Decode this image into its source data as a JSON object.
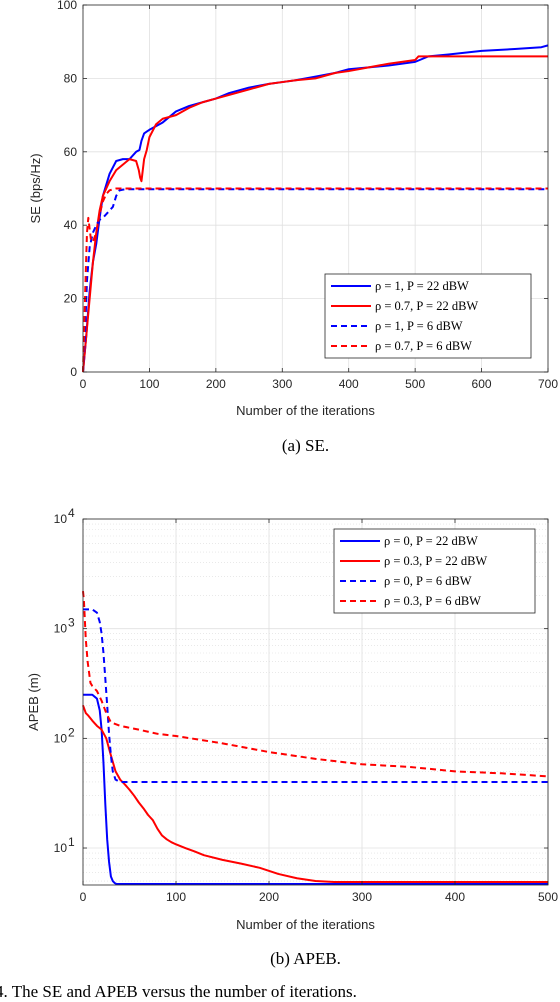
{
  "chart_data": [
    {
      "type": "line",
      "caption": "(a) SE.",
      "xlabel": "Number of the iterations",
      "ylabel": "SE (bps/Hz)",
      "xlim": [
        0,
        700
      ],
      "ylim": [
        0,
        100
      ],
      "yscale": "linear",
      "xticks": [
        0,
        100,
        200,
        300,
        400,
        500,
        600,
        700
      ],
      "yticks": [
        0,
        20,
        40,
        60,
        80,
        100
      ],
      "xtick_labels": [
        "0",
        "100",
        "200",
        "300",
        "400",
        "500",
        "600",
        "700"
      ],
      "ytick_labels": [
        "0",
        "20",
        "40",
        "60",
        "80",
        "100"
      ],
      "grid": true,
      "legend_position": "bottom-right",
      "series": [
        {
          "name": "ρ = 1, P = 22 dBW",
          "color": "#0000ff",
          "dash": "solid",
          "x": [
            0,
            5,
            10,
            15,
            20,
            25,
            30,
            40,
            50,
            60,
            70,
            80,
            85,
            88,
            92,
            96,
            100,
            110,
            120,
            140,
            160,
            180,
            200,
            220,
            250,
            280,
            300,
            320,
            350,
            380,
            400,
            430,
            460,
            500,
            520,
            550,
            600,
            650,
            690,
            700
          ],
          "y": [
            0,
            10,
            22,
            30,
            35,
            42,
            48,
            54,
            57.5,
            58,
            58,
            60,
            60.5,
            63,
            65,
            65.5,
            66,
            67,
            68,
            71,
            72.5,
            73.5,
            74.5,
            76,
            77.5,
            78.5,
            79,
            79.5,
            80.5,
            81.5,
            82.5,
            83,
            83.5,
            84.5,
            86,
            86.5,
            87.5,
            88,
            88.5,
            89
          ]
        },
        {
          "name": "ρ = 0.7, P = 22 dBW",
          "color": "#ff0000",
          "dash": "solid",
          "x": [
            0,
            5,
            10,
            15,
            20,
            25,
            30,
            40,
            50,
            60,
            70,
            80,
            84,
            86,
            88,
            90,
            92,
            96,
            100,
            110,
            120,
            140,
            160,
            180,
            200,
            220,
            250,
            280,
            300,
            320,
            350,
            380,
            400,
            430,
            460,
            500,
            505,
            520,
            550,
            600,
            650,
            700
          ],
          "y": [
            0,
            10,
            20,
            30,
            38,
            44,
            48,
            52,
            55,
            56.5,
            58,
            57.5,
            55,
            53,
            52,
            55,
            58,
            60.5,
            64,
            67.5,
            69,
            70,
            72,
            73.5,
            74.5,
            75.5,
            77,
            78.5,
            79,
            79.5,
            80,
            81.5,
            82,
            83,
            84,
            85,
            86,
            86,
            86,
            86,
            86,
            86
          ]
        },
        {
          "name": "ρ = 1, P = 6 dBW",
          "color": "#0000ff",
          "dash": "dashed",
          "x": [
            0,
            3,
            6,
            10,
            15,
            20,
            25,
            30,
            35,
            40,
            45,
            50,
            55,
            60,
            70,
            80,
            100,
            200,
            300,
            400,
            500,
            600,
            700
          ],
          "y": [
            0,
            10,
            25,
            34,
            38,
            40,
            41.5,
            42,
            43,
            44,
            45,
            48,
            49.5,
            49.7,
            49.8,
            49.8,
            49.8,
            49.8,
            49.8,
            49.8,
            49.8,
            49.8,
            49.8
          ]
        },
        {
          "name": "ρ = 0.7, P = 6 dBW",
          "color": "#ff0000",
          "dash": "dashed",
          "x": [
            0,
            3,
            6,
            8,
            10,
            12,
            15,
            20,
            25,
            30,
            35,
            40,
            50,
            60,
            70,
            80,
            100,
            200,
            300,
            400,
            500,
            600,
            700
          ],
          "y": [
            0,
            20,
            38,
            42,
            39,
            36,
            35.5,
            38,
            43,
            46.5,
            48.5,
            49.5,
            50,
            50,
            50,
            50,
            50,
            50,
            50,
            50,
            50,
            50,
            50
          ]
        }
      ]
    },
    {
      "type": "line",
      "caption": "(b) APEB.",
      "xlabel": "Number of the iterations",
      "ylabel": "APEB (m)",
      "xlim": [
        0,
        500
      ],
      "ylim": [
        4.6,
        10000
      ],
      "yscale": "log",
      "xticks": [
        0,
        100,
        200,
        300,
        400,
        500
      ],
      "yticks": [
        10,
        100,
        1000,
        10000
      ],
      "xtick_labels": [
        "0",
        "100",
        "200",
        "300",
        "400",
        "500"
      ],
      "ytick_labels": [
        "10",
        "10",
        "10",
        "10"
      ],
      "ytick_exponents": [
        "1",
        "2",
        "3",
        "4"
      ],
      "grid": true,
      "minor_grid": true,
      "legend_position": "top-right",
      "series": [
        {
          "name": "ρ = 0, P = 22 dBW",
          "color": "#0000ff",
          "dash": "solid",
          "x": [
            0,
            5,
            10,
            15,
            18,
            20,
            22,
            24,
            26,
            28,
            30,
            32,
            34,
            36,
            40,
            50,
            100,
            200,
            300,
            400,
            500
          ],
          "y": [
            250,
            250,
            250,
            230,
            180,
            120,
            60,
            25,
            12,
            7.5,
            5.5,
            5,
            4.8,
            4.7,
            4.7,
            4.7,
            4.7,
            4.7,
            4.7,
            4.7,
            4.7
          ]
        },
        {
          "name": "ρ = 0.3, P = 22 dBW",
          "color": "#ff0000",
          "dash": "solid",
          "x": [
            0,
            3,
            6,
            10,
            15,
            20,
            25,
            30,
            35,
            40,
            45,
            50,
            55,
            60,
            65,
            70,
            75,
            80,
            85,
            90,
            95,
            100,
            110,
            120,
            130,
            150,
            170,
            190,
            210,
            230,
            250,
            270,
            300,
            350,
            400,
            450,
            500
          ],
          "y": [
            200,
            170,
            160,
            145,
            130,
            120,
            100,
            70,
            50,
            42,
            38,
            34,
            30,
            26,
            23,
            20,
            18,
            15,
            13,
            12,
            11.3,
            10.8,
            10,
            9.3,
            8.6,
            7.8,
            7.2,
            6.6,
            5.8,
            5.3,
            5,
            4.9,
            4.9,
            4.9,
            4.9,
            4.9,
            4.9
          ]
        },
        {
          "name": "ρ = 0, P = 6 dBW",
          "color": "#0000ff",
          "dash": "dashed",
          "x": [
            0,
            5,
            10,
            15,
            18,
            20,
            22,
            24,
            26,
            28,
            30,
            32,
            35,
            40,
            50,
            100,
            200,
            300,
            400,
            500
          ],
          "y": [
            1500,
            1500,
            1500,
            1400,
            1150,
            900,
            600,
            350,
            200,
            110,
            70,
            50,
            42,
            40,
            40,
            40,
            40,
            40,
            40,
            40
          ]
        },
        {
          "name": "ρ = 0.3, P = 6 dBW",
          "color": "#ff0000",
          "dash": "dashed",
          "x": [
            0,
            1,
            2,
            3,
            5,
            8,
            10,
            15,
            20,
            25,
            30,
            40,
            60,
            80,
            100,
            150,
            200,
            250,
            300,
            350,
            400,
            450,
            500
          ],
          "y": [
            2200,
            1800,
            1200,
            800,
            500,
            320,
            300,
            270,
            220,
            170,
            140,
            130,
            120,
            110,
            105,
            90,
            75,
            65,
            58,
            55,
            50,
            48,
            45
          ]
        }
      ]
    }
  ],
  "figure": {
    "caption_text": "4.   The SE and APEB versus the number of iterations."
  }
}
